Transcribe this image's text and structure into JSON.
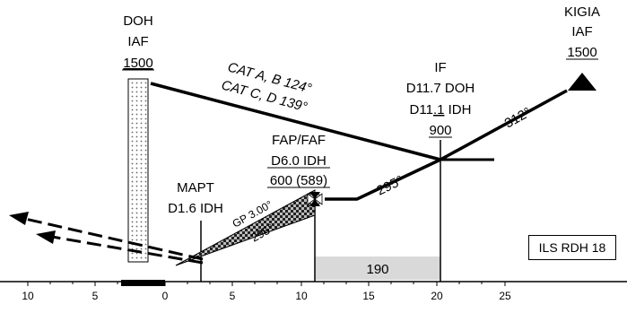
{
  "doh": {
    "name": "DOH",
    "role": "IAF",
    "altitude": "1500"
  },
  "kigia": {
    "name": "KIGIA",
    "role": "IAF",
    "altitude": "1500"
  },
  "cat_ab": "CAT A, B 124°",
  "cat_cd": "CAT C, D 139°",
  "if_fix": {
    "label": "IF",
    "dist_doh": "D11.7 DOH",
    "dist_idh_prefix": "D11",
    "dist_idh_ul": ".1",
    "dist_idh_suffix": " IDH",
    "altitude": "900"
  },
  "faf": {
    "label": "FAP/FAF",
    "dist": "D6.0 IDH",
    "altitude": "600 (589)"
  },
  "mapt": {
    "label": "MAPT",
    "dist": "D1.6 IDH"
  },
  "gp": "GP 3.00°",
  "course_final": "295°",
  "course_inbound": "295°",
  "course_kigia": "312°",
  "segment_value": "190",
  "rdh": "ILS RDH 18",
  "axis_ticks": [
    "10",
    "5",
    "0",
    "5",
    "10",
    "15",
    "20",
    "25"
  ]
}
